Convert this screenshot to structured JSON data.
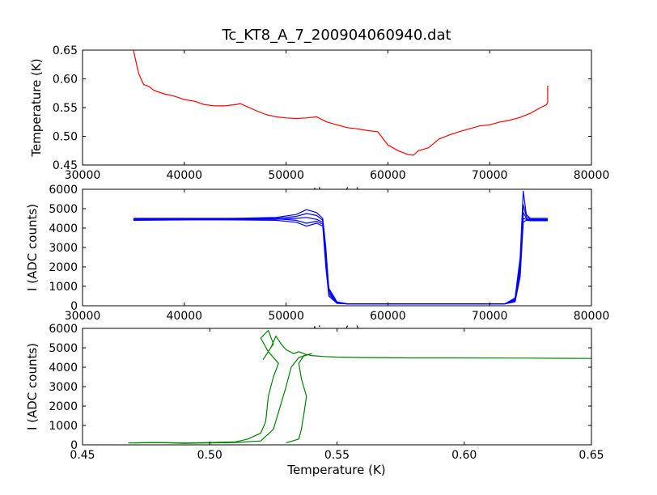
{
  "figure": {
    "title": "Tc_KT8_A_7_200904060940.dat"
  },
  "chart_data": [
    {
      "type": "line",
      "xlabel": "time (s)",
      "ylabel": "Temperature (K)",
      "xlim": [
        30000,
        80000
      ],
      "ylim": [
        0.45,
        0.65
      ],
      "xticks": [
        "30000",
        "40000",
        "50000",
        "60000",
        "70000",
        "80000"
      ],
      "yticks": [
        "0.45",
        "0.50",
        "0.55",
        "0.60",
        "0.65"
      ],
      "grid": false,
      "color": "#ff0000",
      "series": [
        {
          "x": [
            35000,
            35500,
            36000,
            36500,
            37000,
            38000,
            39000,
            40000,
            41000,
            42000,
            43000,
            44000,
            45000,
            45500,
            46000,
            47000,
            48000,
            49000,
            50000,
            51000,
            52000,
            53000,
            54000,
            55000,
            56000,
            57000,
            58000,
            59000,
            60000,
            61000,
            62000,
            62500,
            63000,
            64000,
            65000,
            66000,
            67000,
            68000,
            69000,
            70000,
            71000,
            72000,
            73000,
            74000,
            75000,
            75600,
            75700,
            75700
          ],
          "y": [
            0.65,
            0.61,
            0.59,
            0.587,
            0.58,
            0.574,
            0.57,
            0.564,
            0.561,
            0.555,
            0.553,
            0.553,
            0.555,
            0.557,
            0.553,
            0.545,
            0.538,
            0.534,
            0.532,
            0.531,
            0.532,
            0.534,
            0.525,
            0.52,
            0.515,
            0.513,
            0.51,
            0.508,
            0.485,
            0.475,
            0.468,
            0.467,
            0.475,
            0.48,
            0.495,
            0.502,
            0.508,
            0.513,
            0.518,
            0.52,
            0.525,
            0.528,
            0.533,
            0.54,
            0.55,
            0.555,
            0.56,
            0.588
          ]
        }
      ]
    },
    {
      "type": "line",
      "xlabel": "time (s)",
      "ylabel": "I (ADC counts)",
      "xlim": [
        30000,
        80000
      ],
      "ylim": [
        0,
        6000
      ],
      "xticks": [
        "30000",
        "40000",
        "50000",
        "60000",
        "70000",
        "80000"
      ],
      "yticks": [
        "0",
        "1000",
        "2000",
        "3000",
        "4000",
        "5000",
        "6000"
      ],
      "grid": false,
      "color": "#0000ff",
      "series": [
        {
          "x": [
            35000,
            40000,
            45000,
            49000,
            51000,
            52000,
            53000,
            53600,
            53900,
            54200,
            55000,
            56000,
            60000,
            65000,
            70000,
            71500,
            72500,
            73000,
            73300,
            73600,
            74000,
            75700
          ],
          "y": [
            4500,
            4500,
            4500,
            4550,
            4700,
            4950,
            4800,
            4500,
            3000,
            800,
            150,
            100,
            100,
            100,
            100,
            100,
            400,
            2500,
            5900,
            4700,
            4500,
            4500
          ]
        },
        {
          "x": [
            35000,
            40000,
            45000,
            49000,
            51000,
            52000,
            53000,
            53600,
            53900,
            54200,
            55000,
            56000,
            60000,
            65000,
            70000,
            71500,
            72500,
            73000,
            73300,
            73600,
            74000,
            75700
          ],
          "y": [
            4450,
            4450,
            4480,
            4500,
            4600,
            4750,
            4650,
            4400,
            2800,
            900,
            200,
            100,
            100,
            100,
            100,
            100,
            300,
            2200,
            5200,
            4600,
            4450,
            4450
          ]
        },
        {
          "x": [
            35000,
            40000,
            45000,
            49000,
            51000,
            52000,
            53000,
            53600,
            53900,
            54200,
            55000,
            56000,
            60000,
            65000,
            70000,
            71500,
            72500,
            73000,
            73300,
            73600,
            74000,
            75700
          ],
          "y": [
            4400,
            4420,
            4450,
            4450,
            4500,
            4550,
            4450,
            4300,
            2500,
            700,
            180,
            100,
            100,
            100,
            100,
            100,
            350,
            2000,
            4800,
            4500,
            4400,
            4400
          ]
        },
        {
          "x": [
            35000,
            40000,
            45000,
            49000,
            51000,
            52000,
            53000,
            53600,
            53900,
            54200,
            55000,
            56000,
            60000,
            65000,
            70000,
            71500,
            72500,
            73000,
            73300,
            73600,
            74000,
            75700
          ],
          "y": [
            4480,
            4480,
            4500,
            4480,
            4400,
            4250,
            4350,
            4200,
            2300,
            600,
            150,
            100,
            100,
            100,
            100,
            100,
            250,
            1800,
            4500,
            4450,
            4420,
            4420
          ]
        },
        {
          "x": [
            35000,
            40000,
            45000,
            49000,
            51000,
            52000,
            53000,
            53600,
            53900,
            54200,
            55000,
            56000,
            60000,
            65000,
            70000,
            71500,
            72500,
            73000,
            73300,
            73600,
            74000,
            75700
          ],
          "y": [
            4430,
            4430,
            4420,
            4400,
            4300,
            4100,
            4250,
            4100,
            2000,
            500,
            120,
            100,
            100,
            100,
            100,
            100,
            200,
            1500,
            4300,
            4400,
            4380,
            4380
          ]
        }
      ]
    },
    {
      "type": "line",
      "xlabel": "Temperature (K)",
      "ylabel": "I (ADC counts)",
      "xlim": [
        0.45,
        0.65
      ],
      "ylim": [
        0,
        6000
      ],
      "xticks": [
        "0.45",
        "0.50",
        "0.55",
        "0.60",
        "0.65"
      ],
      "yticks": [
        "0",
        "1000",
        "2000",
        "3000",
        "4000",
        "5000",
        "6000"
      ],
      "grid": false,
      "color": "#008000",
      "series": [
        {
          "x": [
            0.468,
            0.48,
            0.49,
            0.5,
            0.51,
            0.515,
            0.52,
            0.522,
            0.523,
            0.525,
            0.527,
            0.523,
            0.52,
            0.523,
            0.525,
            0.522,
            0.521,
            0.524,
            0.526,
            0.528,
            0.53,
            0.533,
            0.535,
            0.538,
            0.54,
            0.545,
            0.55,
            0.56,
            0.58,
            0.6,
            0.62,
            0.64,
            0.65
          ],
          "y": [
            100,
            120,
            100,
            120,
            150,
            300,
            600,
            1200,
            2500,
            3500,
            4200,
            4800,
            5500,
            5900,
            5200,
            4600,
            4400,
            5000,
            5600,
            5200,
            4900,
            4700,
            4800,
            4650,
            4600,
            4550,
            4520,
            4500,
            4480,
            4480,
            4470,
            4460,
            4450
          ]
        },
        {
          "x": [
            0.53,
            0.535,
            0.536,
            0.537,
            0.538,
            0.536,
            0.535,
            0.537,
            0.54,
            0.535,
            0.532,
            0.53,
            0.525,
            0.52,
            0.51,
            0.5,
            0.49,
            0.48,
            0.47
          ],
          "y": [
            100,
            300,
            800,
            1600,
            2500,
            3400,
            4200,
            4600,
            4700,
            4500,
            4000,
            3000,
            800,
            200,
            120,
            100,
            80,
            120,
            100
          ]
        }
      ]
    }
  ]
}
